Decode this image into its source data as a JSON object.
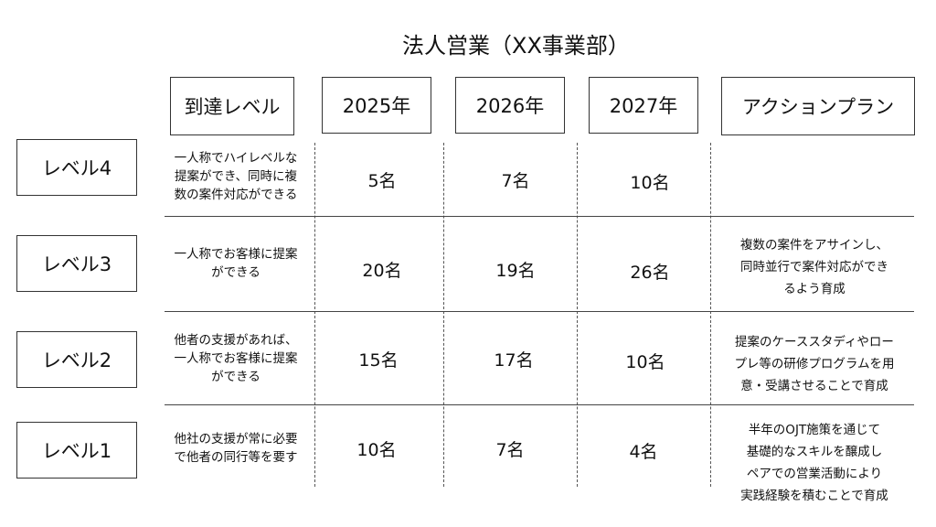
{
  "title": "法人営業（XX事業部）",
  "headers": {
    "reach_level": "到達レベル",
    "y2025": "2025年",
    "y2026": "2026年",
    "y2027": "2027年",
    "action_plan": "アクションプラン"
  },
  "levels": [
    {
      "label": "レベル4",
      "description": "一人称でハイレベルな\n提案ができ、同時に複\n数の案件対応ができる",
      "y2025": "5名",
      "y2026": "7名",
      "y2027": "10名",
      "action": ""
    },
    {
      "label": "レベル3",
      "description": "一人称でお客様に提案\nができる",
      "y2025": "20名",
      "y2026": "19名",
      "y2027": "26名",
      "action": "複数の案件をアサインし、\n同時並行で案件対応ができ\nるよう育成"
    },
    {
      "label": "レベル2",
      "description": "他者の支援があれば、\n一人称でお客様に提案\nができる",
      "y2025": "15名",
      "y2026": "17名",
      "y2027": "10名",
      "action": "提案のケーススタディやロー\nプレ等の研修プログラムを用\n意・受講させることで育成"
    },
    {
      "label": "レベル1",
      "description": "他社の支援が常に必要\nで他者の同行等を要す",
      "y2025": "10名",
      "y2026": "7名",
      "y2027": "4名",
      "action": "半年のOJT施策を通じて\n基礎的なスキルを醸成し\nペアでの営業活動により\n実践経験を積むことで育成"
    }
  ]
}
